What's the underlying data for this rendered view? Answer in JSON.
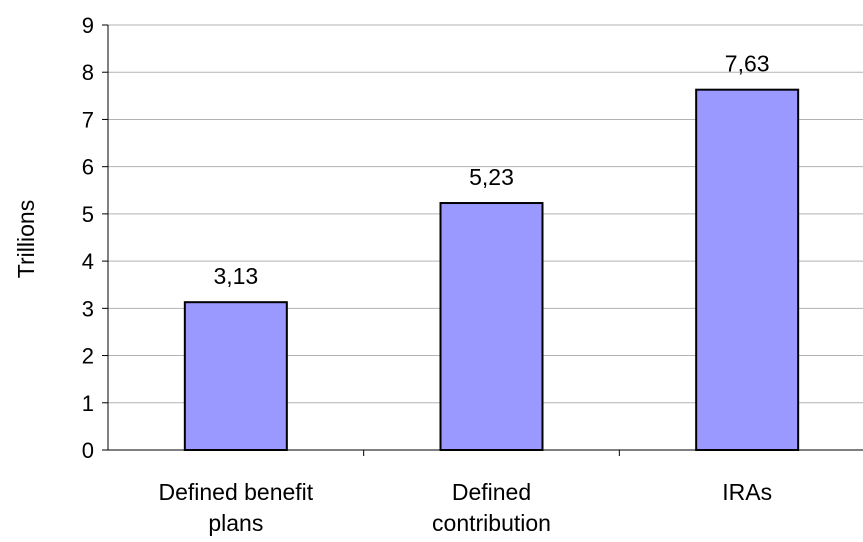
{
  "chart_data": {
    "type": "bar",
    "categories": [
      [
        "Defined benefit",
        "plans"
      ],
      [
        "Defined",
        "contribution"
      ],
      [
        "IRAs"
      ]
    ],
    "values": [
      3.13,
      5.23,
      7.63
    ],
    "value_labels": [
      "3,13",
      "5,23",
      "7,63"
    ],
    "ylabel": "Trillions",
    "ylim": [
      0,
      9
    ],
    "yticks": [
      "0",
      "1",
      "2",
      "3",
      "4",
      "5",
      "6",
      "7",
      "8",
      "9"
    ],
    "grid": true,
    "legend": "none",
    "bar_color": "#9999ff",
    "bar_edge_color": "#000000"
  }
}
